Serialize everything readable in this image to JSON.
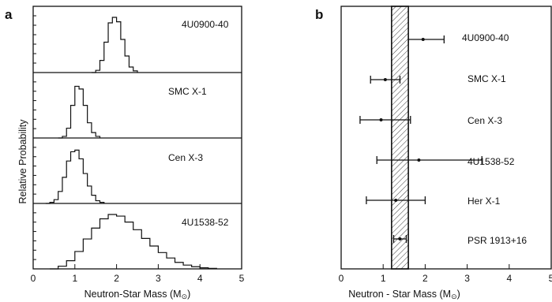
{
  "chart_data": [
    {
      "panel_label": "a",
      "type": "line",
      "xlabel": "Neutron-Star Mass (M",
      "xlabel_sub": "⊙",
      "xlabel_close": ")",
      "ylabel": "Relative Probability",
      "xlim": [
        0,
        5
      ],
      "xticks": [
        "0",
        "1",
        "2",
        "3",
        "4",
        "5"
      ],
      "grid": false,
      "series": [
        {
          "name": "4U0900-40",
          "x": [
            1.4,
            1.5,
            1.6,
            1.7,
            1.8,
            1.9,
            2.0,
            2.1,
            2.2,
            2.3,
            2.4,
            2.5
          ],
          "y": [
            0,
            0.04,
            0.22,
            0.55,
            0.9,
            1.0,
            0.92,
            0.6,
            0.3,
            0.1,
            0.03,
            0
          ]
        },
        {
          "name": "SMC X-1",
          "x": [
            0.6,
            0.7,
            0.8,
            0.9,
            1.0,
            1.1,
            1.2,
            1.3,
            1.4,
            1.5,
            1.6
          ],
          "y": [
            0,
            0.03,
            0.18,
            0.6,
            0.95,
            0.9,
            0.6,
            0.28,
            0.1,
            0.03,
            0
          ]
        },
        {
          "name": "Cen X-3",
          "x": [
            0.3,
            0.4,
            0.5,
            0.6,
            0.7,
            0.8,
            0.9,
            1.0,
            1.1,
            1.2,
            1.3,
            1.4,
            1.5,
            1.6,
            1.7
          ],
          "y": [
            0,
            0.02,
            0.07,
            0.22,
            0.48,
            0.78,
            0.95,
            0.98,
            0.82,
            0.55,
            0.32,
            0.15,
            0.05,
            0.02,
            0
          ]
        },
        {
          "name": "4U1538-52",
          "x": [
            0.4,
            0.6,
            0.8,
            1.0,
            1.2,
            1.4,
            1.6,
            1.8,
            2.0,
            2.2,
            2.4,
            2.6,
            2.8,
            3.0,
            3.2,
            3.4,
            3.6,
            3.8,
            4.0,
            4.2,
            4.4
          ],
          "y": [
            0,
            0.05,
            0.15,
            0.32,
            0.55,
            0.75,
            0.92,
            1.0,
            0.97,
            0.86,
            0.72,
            0.56,
            0.42,
            0.3,
            0.2,
            0.12,
            0.07,
            0.04,
            0.02,
            0.01,
            0
          ]
        }
      ]
    },
    {
      "panel_label": "b",
      "type": "scatter",
      "xlabel": "Neutron - Star Mass (M",
      "xlabel_sub": "⊙",
      "xlabel_close": ")",
      "xlim": [
        0,
        5
      ],
      "xticks": [
        "0",
        "1",
        "2",
        "3",
        "4",
        "5"
      ],
      "grid": false,
      "band": {
        "min": 1.2,
        "max": 1.6,
        "hatched": true
      },
      "series": [
        {
          "name": "4U0900-40",
          "value": 1.95,
          "low": 1.6,
          "high": 2.45
        },
        {
          "name": "SMC X-1",
          "value": 1.05,
          "low": 0.7,
          "high": 1.4
        },
        {
          "name": "Cen X-3",
          "value": 0.95,
          "low": 0.45,
          "high": 1.65
        },
        {
          "name": "4U1538-52",
          "value": 1.85,
          "low": 0.85,
          "high": 3.35
        },
        {
          "name": "Her X-1",
          "value": 1.3,
          "low": 0.6,
          "high": 2.0
        },
        {
          "name": "PSR 1913+16",
          "value": 1.4,
          "low": 1.25,
          "high": 1.55
        }
      ]
    }
  ]
}
